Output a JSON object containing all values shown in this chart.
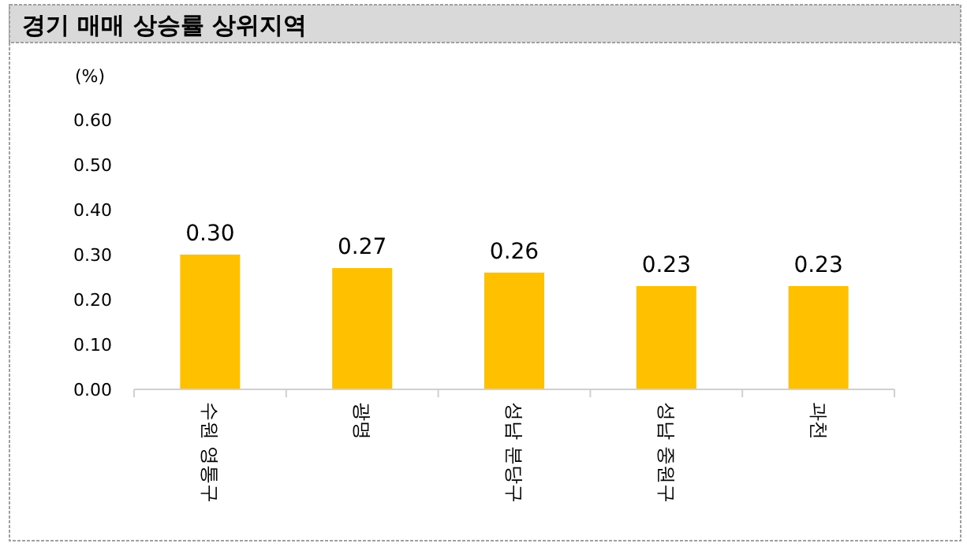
{
  "chart_data": {
    "type": "bar",
    "title": "경기 매매 상승률 상위지역",
    "ylabel": "(%)",
    "categories": [
      "수원 영통구",
      "광명",
      "성남 분당구",
      "성남 중원구",
      "과천"
    ],
    "values": [
      0.3,
      0.27,
      0.26,
      0.23,
      0.23
    ],
    "value_labels": [
      "0.30",
      "0.27",
      "0.26",
      "0.23",
      "0.23"
    ],
    "color": "#ffc000",
    "ylim": [
      0,
      0.6
    ],
    "yticks": [
      {
        "value": 0,
        "label": "0.00"
      },
      {
        "value": 0.1,
        "label": "0.10"
      },
      {
        "value": 0.2,
        "label": "0.20"
      },
      {
        "value": 0.3,
        "label": "0.30"
      },
      {
        "value": 0.4,
        "label": "0.40"
      },
      {
        "value": 0.5,
        "label": "0.50"
      },
      {
        "value": 0.6,
        "label": "0.60"
      }
    ],
    "grid": false
  }
}
